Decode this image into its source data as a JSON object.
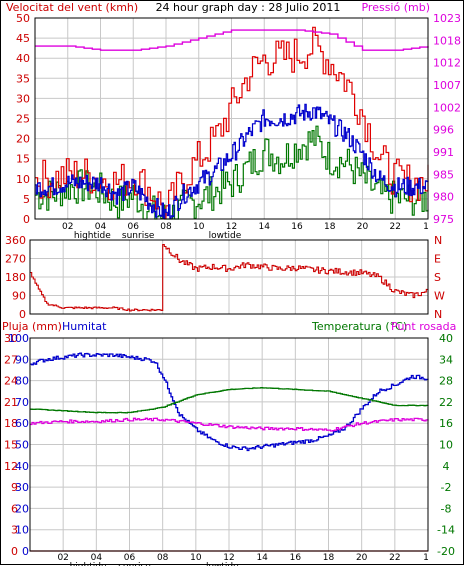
{
  "header": {
    "left": "Velocitat del vent (kmh)",
    "center": "24 hour graph day : 28 Julio 2011",
    "right": "Pressió (mb)"
  },
  "colors": {
    "gust": "#e00000",
    "wind_avg": "#0000cc",
    "wind_low": "#007700",
    "pressure": "#dd00dd",
    "direction": "#cc0000",
    "temperature": "#007700",
    "dewpoint": "#dd00dd",
    "humidity": "#0000cc",
    "rain": "#cc0000",
    "grid": "#c8c8c8",
    "border": "#000000"
  },
  "x_ticks": [
    "02",
    "04",
    "06",
    "08",
    "10",
    "12",
    "14",
    "16",
    "18",
    "20",
    "22"
  ],
  "markers": [
    {
      "label": "hightide",
      "hour": 3.5
    },
    {
      "label": "sunrise",
      "hour": 6.3
    },
    {
      "label": "lowtide",
      "hour": 11.6
    }
  ],
  "chart_data": [
    {
      "type": "line",
      "title": "24 hour graph day : 28 Julio 2011",
      "ylabel": "Velocitat del vent (kmh)",
      "y2label": "Pressió (mb)",
      "xlim": [
        0,
        24
      ],
      "ylim": [
        0,
        50
      ],
      "y2lim": [
        975,
        1025
      ],
      "yticks": [
        "0",
        "5",
        "10",
        "15",
        "20",
        "25",
        "30",
        "35",
        "40",
        "45",
        "50"
      ],
      "y2ticks": [
        "975",
        "980",
        "985",
        "991",
        "996",
        "1002",
        "1007",
        "1012",
        "1018",
        "1023"
      ],
      "grid": true,
      "series": [
        {
          "name": "gust",
          "axis": "left",
          "color_key": "gust",
          "x": [
            0,
            1,
            2,
            3,
            4,
            5,
            6,
            7,
            8,
            9,
            10,
            11,
            12,
            13,
            14,
            15,
            16,
            17,
            18,
            19,
            20,
            21,
            22,
            23,
            24
          ],
          "values": [
            10,
            10,
            11,
            11,
            10,
            9,
            11,
            7,
            2,
            10,
            15,
            20,
            28,
            36,
            40,
            40,
            41,
            43,
            39,
            34,
            26,
            15,
            10,
            9,
            9
          ]
        },
        {
          "name": "avg",
          "axis": "left",
          "color_key": "wind_avg",
          "x": [
            0,
            1,
            2,
            3,
            4,
            5,
            6,
            7,
            8,
            9,
            10,
            11,
            12,
            13,
            14,
            15,
            16,
            17,
            18,
            19,
            20,
            21,
            22,
            23,
            24
          ],
          "values": [
            8,
            8,
            9,
            9,
            9,
            6,
            8,
            4,
            1,
            6,
            9,
            12,
            16,
            21,
            25,
            25,
            26,
            27,
            24,
            21,
            16,
            10,
            8,
            8,
            8
          ]
        },
        {
          "name": "low",
          "axis": "left",
          "color_key": "wind_low",
          "x": [
            0,
            1,
            2,
            3,
            4,
            5,
            6,
            7,
            8,
            9,
            10,
            11,
            12,
            13,
            14,
            15,
            16,
            17,
            18,
            19,
            20,
            21,
            22,
            23,
            24
          ],
          "values": [
            6,
            6,
            8,
            8,
            7,
            4,
            6,
            2,
            0,
            3,
            5,
            7,
            9,
            13,
            17,
            15,
            18,
            20,
            15,
            14,
            10,
            6,
            5,
            5,
            5
          ]
        },
        {
          "name": "pressure",
          "axis": "right",
          "color_key": "pressure",
          "x": [
            0,
            2,
            4,
            6,
            8,
            10,
            12,
            14,
            16,
            18,
            20,
            22,
            24
          ],
          "values": [
            1018,
            1018,
            1017,
            1017,
            1018,
            1020,
            1022,
            1022,
            1022,
            1021,
            1017,
            1017,
            1018
          ]
        }
      ]
    },
    {
      "type": "line",
      "xlim": [
        0,
        24
      ],
      "ylim": [
        0,
        360
      ],
      "yticks": [
        "0",
        "90",
        "180",
        "270",
        "360"
      ],
      "ylabels_right": [
        "N",
        "W",
        "S",
        "E",
        "N"
      ],
      "grid": true,
      "series": [
        {
          "name": "direction",
          "color_key": "direction",
          "x": [
            0,
            0.5,
            1,
            2,
            3,
            4,
            5,
            6,
            7,
            7.9,
            8,
            8.5,
            9,
            10,
            11,
            12,
            13,
            14,
            15,
            16,
            17,
            18,
            19,
            20,
            21,
            22,
            23,
            24
          ],
          "values": [
            200,
            120,
            50,
            30,
            30,
            30,
            30,
            20,
            20,
            20,
            340,
            300,
            260,
            220,
            230,
            220,
            240,
            230,
            220,
            225,
            215,
            210,
            205,
            200,
            180,
            110,
            90,
            110
          ]
        }
      ]
    },
    {
      "type": "line",
      "xlim": [
        0,
        24
      ],
      "ylim_humidity": [
        0,
        100
      ],
      "ylim_rain": [
        0,
        30
      ],
      "ylim_temperature": [
        -20,
        40
      ],
      "yticks_humidity": [
        "0",
        "10",
        "20",
        "30",
        "40",
        "50",
        "60",
        "70",
        "80",
        "90",
        "100"
      ],
      "yticks_rain": [
        "0",
        "3",
        "6",
        "9",
        "12",
        "15",
        "18",
        "21",
        "24",
        "27",
        "30"
      ],
      "yticks_temperature": [
        "-20",
        "-14",
        "-8",
        "-2",
        "4",
        "10",
        "16",
        "22",
        "28",
        "34",
        "40"
      ],
      "labels": {
        "rain": "Pluja (mm)",
        "humidity": "Humitat",
        "temperature": "Temperatura (°C)",
        "dewpoint": "Punt rosada"
      },
      "grid": true,
      "series": [
        {
          "name": "Humitat",
          "axis": "humidity",
          "color_key": "humidity",
          "x": [
            0,
            1,
            2,
            3,
            4,
            5,
            6,
            7,
            7.5,
            8,
            9,
            10,
            11,
            12,
            13,
            14,
            15,
            16,
            17,
            18,
            19,
            20,
            21,
            22,
            23,
            24
          ],
          "values": [
            88,
            90,
            91,
            92,
            92,
            92,
            91,
            90,
            89,
            82,
            64,
            57,
            52,
            49,
            48,
            49,
            50,
            51,
            52,
            54,
            58,
            67,
            75,
            78,
            82,
            81
          ]
        },
        {
          "name": "Temperatura",
          "axis": "temperature",
          "color_key": "temperature",
          "x": [
            0,
            2,
            4,
            6,
            8,
            10,
            12,
            14,
            16,
            18,
            20,
            22,
            24
          ],
          "values": [
            20,
            19.5,
            19,
            19,
            20.5,
            24,
            25.5,
            26,
            25.5,
            25,
            23,
            21,
            21
          ]
        },
        {
          "name": "Punt rosada",
          "axis": "temperature",
          "color_key": "dewpoint",
          "x": [
            0,
            2,
            4,
            6,
            8,
            10,
            12,
            14,
            16,
            18,
            20,
            22,
            24
          ],
          "values": [
            16,
            16.5,
            16.5,
            17,
            17,
            16,
            15,
            14.5,
            14.5,
            14,
            16,
            17,
            17
          ]
        },
        {
          "name": "Pluja",
          "axis": "rain",
          "color_key": "rain",
          "x": [
            0,
            24
          ],
          "values": [
            0,
            0
          ]
        }
      ]
    }
  ]
}
